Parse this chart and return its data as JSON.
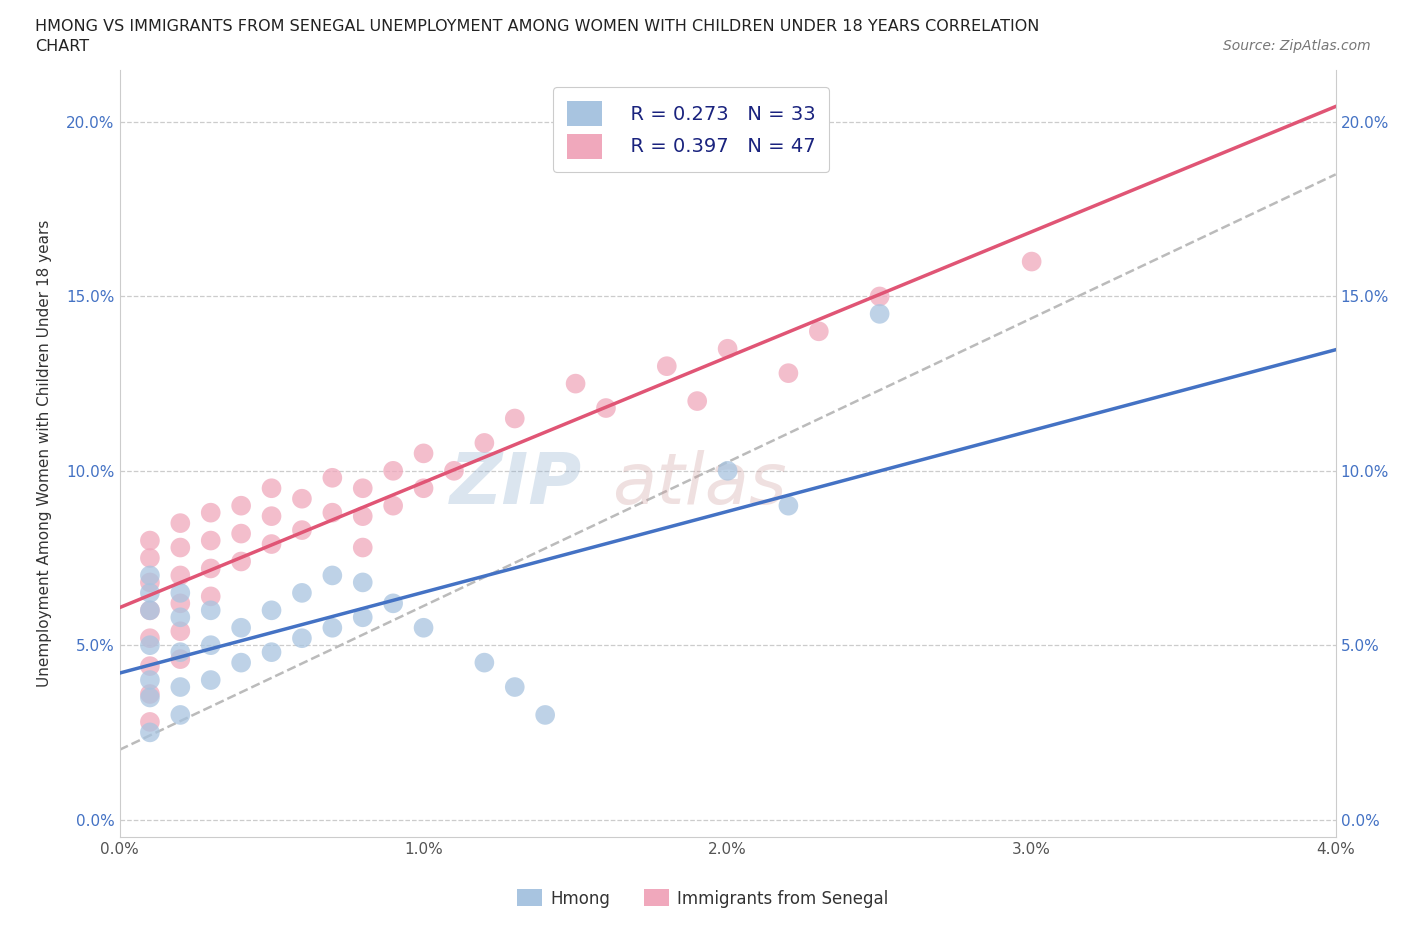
{
  "title_line1": "HMONG VS IMMIGRANTS FROM SENEGAL UNEMPLOYMENT AMONG WOMEN WITH CHILDREN UNDER 18 YEARS CORRELATION",
  "title_line2": "CHART",
  "source_text": "Source: ZipAtlas.com",
  "ylabel": "Unemployment Among Women with Children Under 18 years",
  "hmong_R": 0.273,
  "hmong_N": 33,
  "senegal_R": 0.397,
  "senegal_N": 47,
  "hmong_color": "#a8c4e0",
  "senegal_color": "#f0a8bc",
  "hmong_line_color": "#4472c4",
  "senegal_line_color": "#e05575",
  "grid_color": "#cccccc",
  "spine_color": "#cccccc",
  "hmong_x": [
    0.001,
    0.001,
    0.001,
    0.001,
    0.001,
    0.001,
    0.001,
    0.002,
    0.002,
    0.002,
    0.002,
    0.002,
    0.003,
    0.003,
    0.003,
    0.004,
    0.004,
    0.005,
    0.005,
    0.006,
    0.006,
    0.007,
    0.007,
    0.008,
    0.008,
    0.009,
    0.01,
    0.012,
    0.013,
    0.014,
    0.02,
    0.022,
    0.025
  ],
  "hmong_y": [
    0.065,
    0.07,
    0.06,
    0.05,
    0.04,
    0.035,
    0.025,
    0.065,
    0.058,
    0.048,
    0.038,
    0.03,
    0.06,
    0.05,
    0.04,
    0.055,
    0.045,
    0.06,
    0.048,
    0.065,
    0.052,
    0.07,
    0.055,
    0.068,
    0.058,
    0.062,
    0.055,
    0.045,
    0.038,
    0.03,
    0.1,
    0.09,
    0.145
  ],
  "senegal_x": [
    0.001,
    0.001,
    0.001,
    0.001,
    0.001,
    0.001,
    0.001,
    0.001,
    0.002,
    0.002,
    0.002,
    0.002,
    0.002,
    0.002,
    0.003,
    0.003,
    0.003,
    0.003,
    0.004,
    0.004,
    0.004,
    0.005,
    0.005,
    0.005,
    0.006,
    0.006,
    0.007,
    0.007,
    0.008,
    0.008,
    0.008,
    0.009,
    0.009,
    0.01,
    0.01,
    0.011,
    0.012,
    0.013,
    0.015,
    0.016,
    0.018,
    0.019,
    0.02,
    0.022,
    0.023,
    0.025,
    0.03
  ],
  "senegal_y": [
    0.08,
    0.075,
    0.068,
    0.06,
    0.052,
    0.044,
    0.036,
    0.028,
    0.085,
    0.078,
    0.07,
    0.062,
    0.054,
    0.046,
    0.088,
    0.08,
    0.072,
    0.064,
    0.09,
    0.082,
    0.074,
    0.095,
    0.087,
    0.079,
    0.092,
    0.083,
    0.098,
    0.088,
    0.095,
    0.087,
    0.078,
    0.1,
    0.09,
    0.105,
    0.095,
    0.1,
    0.108,
    0.115,
    0.125,
    0.118,
    0.13,
    0.12,
    0.135,
    0.128,
    0.14,
    0.15,
    0.16
  ],
  "xlim": [
    0.0,
    0.04
  ],
  "ylim": [
    -0.005,
    0.215
  ],
  "xticks": [
    0.0,
    0.01,
    0.02,
    0.03,
    0.04
  ],
  "yticks": [
    0.0,
    0.05,
    0.1,
    0.15,
    0.2
  ]
}
